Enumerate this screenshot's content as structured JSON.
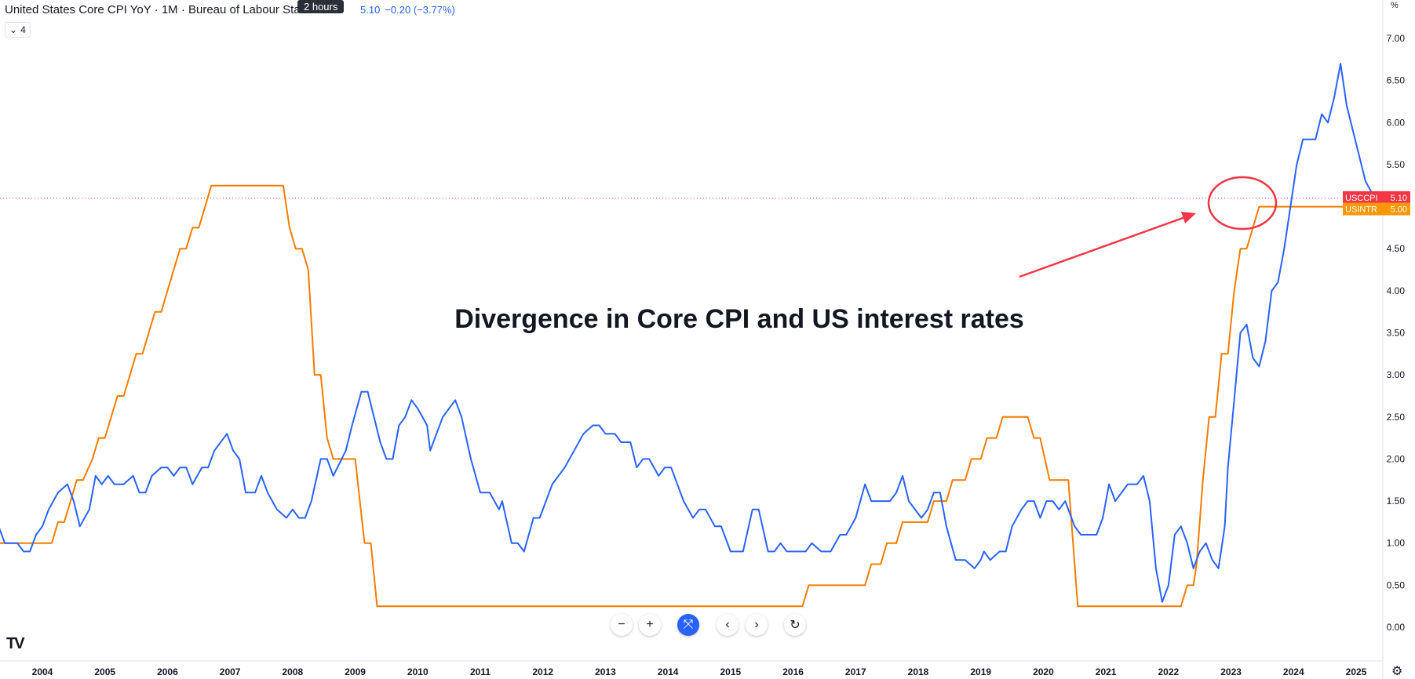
{
  "header": {
    "title": "United States Core CPI YoY · 1M · Bureau of Labour Statistics",
    "tooltip": "2 hours",
    "value": "5.10",
    "change": "−0.20 (−3.77%)",
    "collapse_count": "4",
    "axis_unit": "%"
  },
  "annotation": {
    "text": "Divergence in Core CPI and US interest rates"
  },
  "price_labels": [
    {
      "name": "USCCPI",
      "value": "5.10",
      "color": "#f23645"
    },
    {
      "name": "USINTR",
      "value": "5.00",
      "color": "#ff9800"
    }
  ],
  "controls": {
    "zoom_out": "−",
    "zoom_in": "+",
    "reset_scale": "⤧",
    "scroll_left": "‹",
    "scroll_right": "›",
    "reset_chart": "↻"
  },
  "logo_text": "TV",
  "chart_data": {
    "type": "line",
    "x_range": [
      2003.15,
      2025.7
    ],
    "ylim": [
      -0.15,
      7.1
    ],
    "x_ticks": [
      "2004",
      "2005",
      "2006",
      "2007",
      "2008",
      "2009",
      "2010",
      "2011",
      "2012",
      "2013",
      "2014",
      "2015",
      "2016",
      "2017",
      "2018",
      "2019",
      "2020",
      "2021",
      "2022",
      "2023",
      "2024",
      "2025"
    ],
    "y_ticks": [
      "0.00",
      "0.50",
      "1.00",
      "1.50",
      "2.00",
      "2.50",
      "3.00",
      "3.50",
      "4.00",
      "4.50",
      "5.00",
      "5.50",
      "6.00",
      "6.50",
      "7.00"
    ],
    "series": [
      {
        "name": "USCCPI",
        "color": "#2962ff",
        "points": [
          [
            2003.15,
            1.0
          ],
          [
            2003.3,
            1.2
          ],
          [
            2003.4,
            1.0
          ],
          [
            2003.6,
            1.0
          ],
          [
            2003.7,
            0.9
          ],
          [
            2003.8,
            0.9
          ],
          [
            2003.9,
            1.1
          ],
          [
            2004.0,
            1.2
          ],
          [
            2004.1,
            1.4
          ],
          [
            2004.25,
            1.6
          ],
          [
            2004.4,
            1.7
          ],
          [
            2004.5,
            1.5
          ],
          [
            2004.6,
            1.2
          ],
          [
            2004.75,
            1.4
          ],
          [
            2004.85,
            1.8
          ],
          [
            2004.95,
            1.7
          ],
          [
            2005.05,
            1.8
          ],
          [
            2005.15,
            1.7
          ],
          [
            2005.3,
            1.7
          ],
          [
            2005.45,
            1.8
          ],
          [
            2005.55,
            1.6
          ],
          [
            2005.65,
            1.6
          ],
          [
            2005.75,
            1.8
          ],
          [
            2005.9,
            1.9
          ],
          [
            2006.0,
            1.9
          ],
          [
            2006.1,
            1.8
          ],
          [
            2006.2,
            1.9
          ],
          [
            2006.3,
            1.9
          ],
          [
            2006.4,
            1.7
          ],
          [
            2006.55,
            1.9
          ],
          [
            2006.65,
            1.9
          ],
          [
            2006.75,
            2.1
          ],
          [
            2006.95,
            2.3
          ],
          [
            2007.05,
            2.1
          ],
          [
            2007.15,
            2.0
          ],
          [
            2007.25,
            1.6
          ],
          [
            2007.4,
            1.6
          ],
          [
            2007.5,
            1.8
          ],
          [
            2007.6,
            1.6
          ],
          [
            2007.75,
            1.4
          ],
          [
            2007.9,
            1.3
          ],
          [
            2008.0,
            1.4
          ],
          [
            2008.1,
            1.3
          ],
          [
            2008.2,
            1.3
          ],
          [
            2008.3,
            1.5
          ],
          [
            2008.45,
            2.0
          ],
          [
            2008.55,
            2.0
          ],
          [
            2008.65,
            1.8
          ],
          [
            2008.85,
            2.1
          ],
          [
            2008.95,
            2.4
          ],
          [
            2009.1,
            2.8
          ],
          [
            2009.2,
            2.8
          ],
          [
            2009.3,
            2.5
          ],
          [
            2009.4,
            2.2
          ],
          [
            2009.5,
            2.0
          ],
          [
            2009.6,
            2.0
          ],
          [
            2009.7,
            2.4
          ],
          [
            2009.8,
            2.5
          ],
          [
            2009.9,
            2.7
          ],
          [
            2010.0,
            2.6
          ],
          [
            2010.15,
            2.4
          ],
          [
            2010.2,
            2.1
          ],
          [
            2010.3,
            2.3
          ],
          [
            2010.4,
            2.5
          ],
          [
            2010.6,
            2.7
          ],
          [
            2010.7,
            2.5
          ],
          [
            2010.85,
            2.0
          ],
          [
            2011.0,
            1.6
          ],
          [
            2011.15,
            1.6
          ],
          [
            2011.3,
            1.4
          ],
          [
            2011.35,
            1.5
          ],
          [
            2011.5,
            1.0
          ],
          [
            2011.6,
            1.0
          ],
          [
            2011.7,
            0.9
          ],
          [
            2011.85,
            1.3
          ],
          [
            2011.95,
            1.3
          ],
          [
            2012.05,
            1.5
          ],
          [
            2012.15,
            1.7
          ],
          [
            2012.35,
            1.9
          ],
          [
            2012.5,
            2.1
          ],
          [
            2012.65,
            2.3
          ],
          [
            2012.8,
            2.4
          ],
          [
            2012.9,
            2.4
          ],
          [
            2013.0,
            2.3
          ],
          [
            2013.15,
            2.3
          ],
          [
            2013.25,
            2.2
          ],
          [
            2013.4,
            2.2
          ],
          [
            2013.5,
            1.9
          ],
          [
            2013.6,
            2.0
          ],
          [
            2013.7,
            2.0
          ],
          [
            2013.85,
            1.8
          ],
          [
            2013.95,
            1.9
          ],
          [
            2014.05,
            1.9
          ],
          [
            2014.25,
            1.5
          ],
          [
            2014.4,
            1.3
          ],
          [
            2014.5,
            1.4
          ],
          [
            2014.6,
            1.4
          ],
          [
            2014.75,
            1.2
          ],
          [
            2014.85,
            1.2
          ],
          [
            2015.0,
            0.9
          ],
          [
            2015.15,
            0.9
          ],
          [
            2015.2,
            0.9
          ],
          [
            2015.35,
            1.4
          ],
          [
            2015.45,
            1.4
          ],
          [
            2015.6,
            0.9
          ],
          [
            2015.7,
            0.9
          ],
          [
            2015.8,
            1.0
          ],
          [
            2015.9,
            0.9
          ],
          [
            2016.05,
            0.9
          ],
          [
            2016.2,
            0.9
          ],
          [
            2016.3,
            1.0
          ],
          [
            2016.45,
            0.9
          ],
          [
            2016.6,
            0.9
          ],
          [
            2016.75,
            1.1
          ],
          [
            2016.85,
            1.1
          ],
          [
            2017.0,
            1.3
          ],
          [
            2017.15,
            1.7
          ],
          [
            2017.25,
            1.5
          ],
          [
            2017.4,
            1.5
          ],
          [
            2017.55,
            1.5
          ],
          [
            2017.65,
            1.6
          ],
          [
            2017.75,
            1.8
          ],
          [
            2017.85,
            1.5
          ],
          [
            2018.05,
            1.3
          ],
          [
            2018.15,
            1.4
          ],
          [
            2018.25,
            1.6
          ],
          [
            2018.35,
            1.6
          ],
          [
            2018.45,
            1.2
          ],
          [
            2018.6,
            0.8
          ],
          [
            2018.75,
            0.8
          ],
          [
            2018.9,
            0.7
          ],
          [
            2019.0,
            0.8
          ],
          [
            2019.05,
            0.9
          ],
          [
            2019.15,
            0.8
          ],
          [
            2019.3,
            0.9
          ],
          [
            2019.4,
            0.9
          ],
          [
            2019.5,
            1.2
          ],
          [
            2019.65,
            1.4
          ],
          [
            2019.75,
            1.5
          ],
          [
            2019.85,
            1.5
          ],
          [
            2019.95,
            1.3
          ],
          [
            2020.05,
            1.5
          ],
          [
            2020.15,
            1.5
          ],
          [
            2020.25,
            1.4
          ],
          [
            2020.35,
            1.5
          ],
          [
            2020.5,
            1.2
          ],
          [
            2020.6,
            1.1
          ],
          [
            2020.85,
            1.1
          ],
          [
            2020.95,
            1.3
          ],
          [
            2021.05,
            1.7
          ],
          [
            2021.15,
            1.5
          ],
          [
            2021.35,
            1.7
          ],
          [
            2021.5,
            1.7
          ],
          [
            2021.6,
            1.8
          ],
          [
            2021.7,
            1.5
          ],
          [
            2021.8,
            0.7
          ],
          [
            2021.9,
            0.3
          ],
          [
            2022.0,
            0.5
          ],
          [
            2022.1,
            1.1
          ],
          [
            2022.2,
            1.2
          ],
          [
            2022.3,
            1.0
          ],
          [
            2022.4,
            0.7
          ],
          [
            2022.5,
            0.9
          ],
          [
            2022.6,
            1.0
          ],
          [
            2022.7,
            0.8
          ],
          [
            2022.8,
            0.7
          ],
          [
            2022.9,
            1.2
          ],
          [
            2022.95,
            1.9
          ],
          [
            2023.05,
            2.7
          ],
          [
            2023.15,
            3.5
          ],
          [
            2023.25,
            3.6
          ],
          [
            2023.35,
            3.2
          ],
          [
            2023.45,
            3.1
          ],
          [
            2023.55,
            3.4
          ],
          [
            2023.65,
            4.0
          ],
          [
            2023.75,
            4.1
          ],
          [
            2023.85,
            4.5
          ],
          [
            2023.95,
            5.0
          ],
          [
            2024.05,
            5.5
          ],
          [
            2024.15,
            5.8
          ],
          [
            2024.25,
            5.8
          ],
          [
            2024.35,
            5.8
          ],
          [
            2024.45,
            6.1
          ],
          [
            2024.55,
            6.0
          ],
          [
            2024.65,
            6.3
          ],
          [
            2024.75,
            6.7
          ],
          [
            2024.85,
            6.2
          ],
          [
            2024.95,
            5.9
          ],
          [
            2025.05,
            5.6
          ],
          [
            2025.15,
            5.3
          ],
          [
            2025.3,
            5.1
          ]
        ]
      },
      {
        "name": "USINTR",
        "color": "#f57c00",
        "points": [
          [
            2003.15,
            1.25
          ],
          [
            2003.25,
            1.0
          ],
          [
            2004.15,
            1.0
          ],
          [
            2004.25,
            1.25
          ],
          [
            2004.35,
            1.25
          ],
          [
            2004.45,
            1.5
          ],
          [
            2004.55,
            1.75
          ],
          [
            2004.65,
            1.75
          ],
          [
            2004.8,
            2.0
          ],
          [
            2004.9,
            2.25
          ],
          [
            2005.0,
            2.25
          ],
          [
            2005.1,
            2.5
          ],
          [
            2005.2,
            2.75
          ],
          [
            2005.3,
            2.75
          ],
          [
            2005.4,
            3.0
          ],
          [
            2005.5,
            3.25
          ],
          [
            2005.6,
            3.25
          ],
          [
            2005.7,
            3.5
          ],
          [
            2005.8,
            3.75
          ],
          [
            2005.9,
            3.75
          ],
          [
            2006.0,
            4.0
          ],
          [
            2006.1,
            4.25
          ],
          [
            2006.2,
            4.5
          ],
          [
            2006.3,
            4.5
          ],
          [
            2006.4,
            4.75
          ],
          [
            2006.5,
            4.75
          ],
          [
            2006.6,
            5.0
          ],
          [
            2006.7,
            5.25
          ],
          [
            2007.85,
            5.25
          ],
          [
            2007.95,
            4.75
          ],
          [
            2008.05,
            4.5
          ],
          [
            2008.15,
            4.5
          ],
          [
            2008.25,
            4.25
          ],
          [
            2008.35,
            3.0
          ],
          [
            2008.45,
            3.0
          ],
          [
            2008.55,
            2.25
          ],
          [
            2008.65,
            2.0
          ],
          [
            2009.0,
            2.0
          ],
          [
            2009.15,
            1.0
          ],
          [
            2009.25,
            1.0
          ],
          [
            2009.35,
            0.25
          ],
          [
            2016.15,
            0.25
          ],
          [
            2016.25,
            0.5
          ],
          [
            2017.15,
            0.5
          ],
          [
            2017.25,
            0.75
          ],
          [
            2017.4,
            0.75
          ],
          [
            2017.5,
            1.0
          ],
          [
            2017.65,
            1.0
          ],
          [
            2017.75,
            1.25
          ],
          [
            2018.15,
            1.25
          ],
          [
            2018.25,
            1.5
          ],
          [
            2018.45,
            1.5
          ],
          [
            2018.55,
            1.75
          ],
          [
            2018.75,
            1.75
          ],
          [
            2018.85,
            2.0
          ],
          [
            2019.0,
            2.0
          ],
          [
            2019.1,
            2.25
          ],
          [
            2019.25,
            2.25
          ],
          [
            2019.35,
            2.5
          ],
          [
            2019.75,
            2.5
          ],
          [
            2019.85,
            2.25
          ],
          [
            2019.95,
            2.25
          ],
          [
            2020.1,
            1.75
          ],
          [
            2020.4,
            1.75
          ],
          [
            2020.45,
            1.25
          ],
          [
            2020.55,
            0.25
          ],
          [
            2022.2,
            0.25
          ],
          [
            2022.3,
            0.5
          ],
          [
            2022.4,
            0.5
          ],
          [
            2022.45,
            0.75
          ],
          [
            2022.55,
            1.75
          ],
          [
            2022.65,
            2.5
          ],
          [
            2022.75,
            2.5
          ],
          [
            2022.85,
            3.25
          ],
          [
            2022.95,
            3.25
          ],
          [
            2023.05,
            4.0
          ],
          [
            2023.15,
            4.5
          ],
          [
            2023.25,
            4.5
          ],
          [
            2023.35,
            4.75
          ],
          [
            2023.45,
            5.0
          ],
          [
            2025.3,
            5.0
          ]
        ]
      }
    ]
  }
}
